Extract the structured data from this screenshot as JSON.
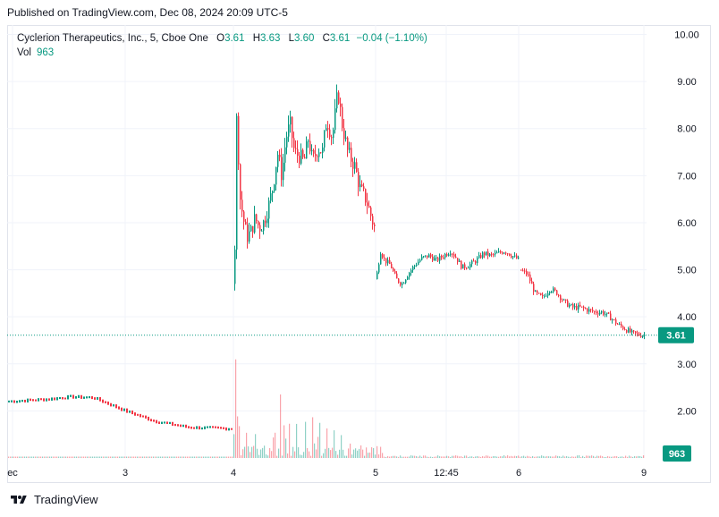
{
  "header": {
    "published": "Published on TradingView.com, Dec 08, 2024 20:09 UTC-5"
  },
  "legend": {
    "symbol": "Cyclerion Therapeutics, Inc., 5, Cboe One",
    "o_label": "O",
    "o_value": "3.61",
    "h_label": "H",
    "h_value": "3.63",
    "l_label": "L",
    "l_value": "3.60",
    "c_label": "C",
    "c_value": "3.61",
    "change": "−0.04 (−1.10%)",
    "vol_label": "Vol",
    "vol_value": "963"
  },
  "footer": {
    "brand": "TradingView"
  },
  "colors": {
    "up": "#089981",
    "down": "#f23645",
    "grid": "#f0f3fa",
    "axis_text": "#131722"
  },
  "chart_data": {
    "type": "candlestick",
    "title": "Cyclerion Therapeutics, Inc., 5, Cboe One",
    "y_ticks": [
      "10.00",
      "9.00",
      "8.00",
      "7.00",
      "6.00",
      "5.00",
      "4.00",
      "3.00",
      "2.00"
    ],
    "ylim": [
      1.0,
      10.2
    ],
    "x_ticks": [
      "ec",
      "3",
      "4",
      "5",
      "12:45",
      "6",
      "9"
    ],
    "last_price": "3.61",
    "last_volume": "963",
    "segments": [
      {
        "day": "Dec 4",
        "points": [
          [
            0.0,
            4.7
          ],
          [
            0.01,
            6.0
          ],
          [
            0.02,
            8.4
          ],
          [
            0.03,
            7.6
          ],
          [
            0.04,
            6.6
          ],
          [
            0.06,
            6.2
          ],
          [
            0.09,
            5.7
          ],
          [
            0.12,
            5.8
          ],
          [
            0.15,
            6.1
          ],
          [
            0.18,
            5.9
          ],
          [
            0.21,
            6.0
          ],
          [
            0.25,
            6.4
          ],
          [
            0.28,
            6.8
          ],
          [
            0.31,
            7.5
          ],
          [
            0.34,
            7.0
          ],
          [
            0.37,
            7.8
          ],
          [
            0.4,
            8.1
          ],
          [
            0.43,
            7.5
          ],
          [
            0.47,
            7.4
          ],
          [
            0.5,
            7.3
          ],
          [
            0.53,
            7.8
          ],
          [
            0.56,
            7.3
          ],
          [
            0.6,
            7.6
          ],
          [
            0.63,
            7.5
          ],
          [
            0.66,
            8.2
          ],
          [
            0.7,
            7.8
          ],
          [
            0.74,
            8.8
          ],
          [
            0.77,
            8.1
          ],
          [
            0.81,
            7.5
          ],
          [
            0.86,
            7.2
          ],
          [
            0.9,
            6.7
          ],
          [
            0.94,
            6.5
          ],
          [
            1.0,
            5.9
          ]
        ]
      },
      {
        "day": "Dec 5",
        "points": [
          [
            0.0,
            4.8
          ],
          [
            0.03,
            5.4
          ],
          [
            0.06,
            5.2
          ],
          [
            0.1,
            5.1
          ],
          [
            0.14,
            4.8
          ],
          [
            0.18,
            4.7
          ],
          [
            0.22,
            4.9
          ],
          [
            0.27,
            5.1
          ],
          [
            0.32,
            5.25
          ],
          [
            0.37,
            5.3
          ],
          [
            0.42,
            5.2
          ],
          [
            0.47,
            5.3
          ],
          [
            0.52,
            5.4
          ],
          [
            0.56,
            5.25
          ],
          [
            0.6,
            5.05
          ],
          [
            0.65,
            5.1
          ],
          [
            0.7,
            5.2
          ],
          [
            0.75,
            5.35
          ],
          [
            0.8,
            5.3
          ],
          [
            0.85,
            5.35
          ],
          [
            0.9,
            5.4
          ],
          [
            0.95,
            5.3
          ],
          [
            1.0,
            5.2
          ]
        ]
      },
      {
        "day": "Dec 6",
        "points": [
          [
            0.0,
            5.0
          ],
          [
            0.06,
            4.9
          ],
          [
            0.12,
            4.5
          ],
          [
            0.18,
            4.4
          ],
          [
            0.24,
            4.6
          ],
          [
            0.3,
            4.5
          ],
          [
            0.36,
            4.3
          ],
          [
            0.42,
            4.2
          ],
          [
            0.48,
            4.2
          ],
          [
            0.54,
            4.15
          ],
          [
            0.6,
            4.1
          ],
          [
            0.66,
            4.1
          ],
          [
            0.72,
            4.0
          ],
          [
            0.78,
            3.85
          ],
          [
            0.84,
            3.75
          ],
          [
            0.9,
            3.65
          ],
          [
            0.95,
            3.62
          ],
          [
            1.0,
            3.61
          ]
        ]
      }
    ],
    "pre_line": [
      [
        0.0,
        2.2
      ],
      [
        0.18,
        2.25
      ],
      [
        0.28,
        2.3
      ],
      [
        0.38,
        2.28
      ],
      [
        0.52,
        2.0
      ],
      [
        0.65,
        1.78
      ],
      [
        0.8,
        1.65
      ],
      [
        1.0,
        1.62
      ]
    ],
    "volume_spikes": [
      [
        0.004,
        0.55
      ],
      [
        0.012,
        1.0
      ],
      [
        0.02,
        0.9
      ],
      [
        0.03,
        0.6
      ],
      [
        0.08,
        0.35
      ],
      [
        0.14,
        0.4
      ],
      [
        0.2,
        0.25
      ],
      [
        0.27,
        0.45
      ],
      [
        0.31,
        0.8
      ],
      [
        0.34,
        0.7
      ],
      [
        0.37,
        0.55
      ],
      [
        0.42,
        0.35
      ],
      [
        0.48,
        0.5
      ],
      [
        0.53,
        0.82
      ],
      [
        0.57,
        0.6
      ],
      [
        0.62,
        0.45
      ],
      [
        0.67,
        0.3
      ],
      [
        0.72,
        0.25
      ],
      [
        0.78,
        0.18
      ],
      [
        0.84,
        0.12
      ],
      [
        0.9,
        0.08
      ],
      [
        0.95,
        0.05
      ]
    ]
  }
}
